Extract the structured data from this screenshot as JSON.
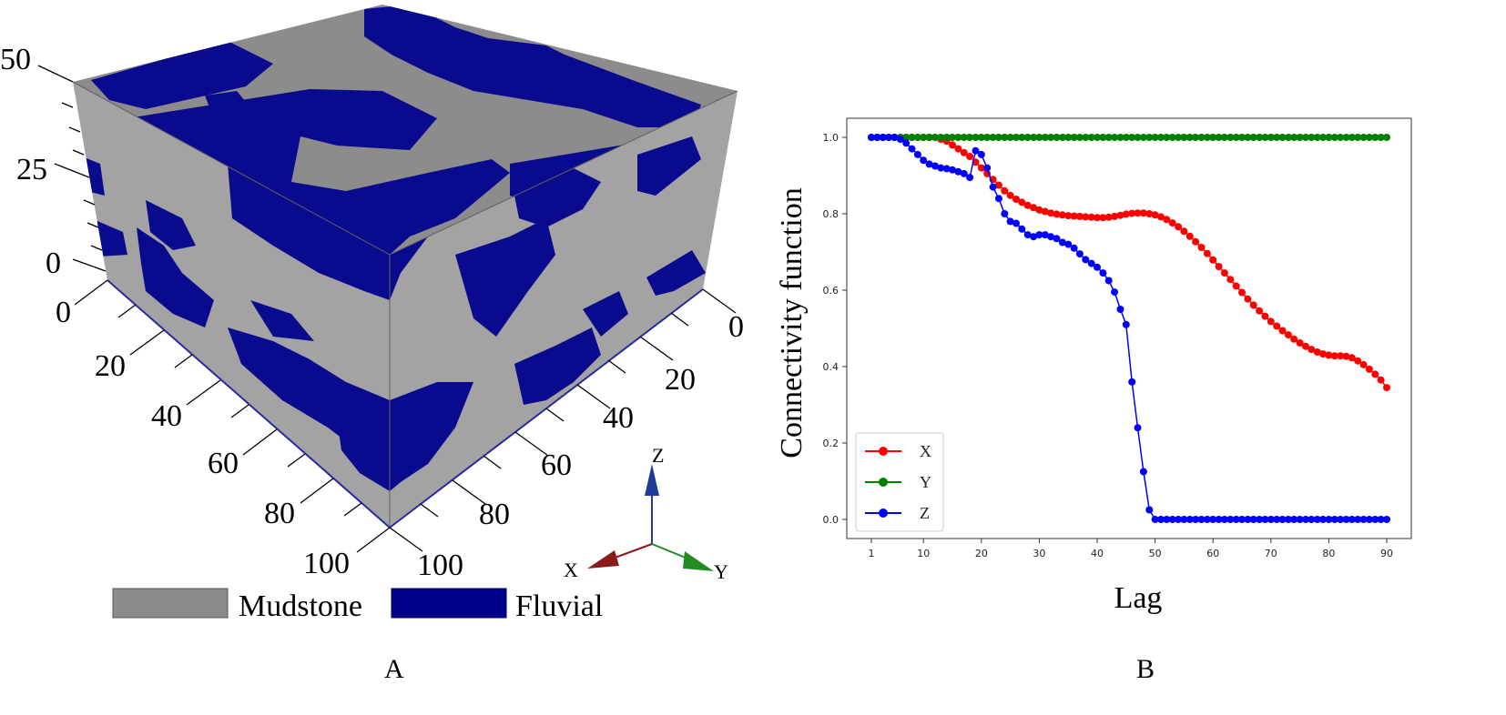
{
  "panel_a": {
    "label": "A",
    "z_ticks": [
      "50",
      "25",
      "0"
    ],
    "x_ticks": [
      "0",
      "20",
      "40",
      "60",
      "80",
      "100"
    ],
    "y_ticks": [
      "0",
      "20",
      "40",
      "60",
      "80",
      "100"
    ],
    "legend": [
      {
        "label": "Mudstone",
        "color": "#8c8c8c"
      },
      {
        "label": "Fluvial",
        "color": "#00008b"
      }
    ],
    "triad": {
      "x": "X",
      "y": "Y",
      "z": "Z",
      "x_color": "#8b1a1a",
      "y_color": "#228b22",
      "z_color": "#1f3a99"
    },
    "colors": {
      "mudstone_top": "#8c8c8c",
      "mudstone_side": "#a3a3a3",
      "fluvial": "#0a0a8f"
    }
  },
  "panel_b": {
    "label": "B"
  },
  "chart_data": {
    "type": "line",
    "xlabel": "Lag",
    "ylabel": "Connectivity function",
    "xlim": [
      1,
      90
    ],
    "ylim": [
      -0.05,
      1.05
    ],
    "x_ticks": [
      1,
      10,
      20,
      30,
      40,
      50,
      60,
      70,
      80,
      90
    ],
    "y_ticks": [
      "0.0",
      "0.2",
      "0.4",
      "0.6",
      "0.8",
      "1.0"
    ],
    "legend_position": "lower-left",
    "grid": false,
    "x": [
      1,
      2,
      3,
      4,
      5,
      6,
      7,
      8,
      9,
      10,
      11,
      12,
      13,
      14,
      15,
      16,
      17,
      18,
      19,
      20,
      21,
      22,
      23,
      24,
      25,
      26,
      27,
      28,
      29,
      30,
      31,
      32,
      33,
      34,
      35,
      36,
      37,
      38,
      39,
      40,
      41,
      42,
      43,
      44,
      45,
      46,
      47,
      48,
      49,
      50,
      51,
      52,
      53,
      54,
      55,
      56,
      57,
      58,
      59,
      60,
      61,
      62,
      63,
      64,
      65,
      66,
      67,
      68,
      69,
      70,
      71,
      72,
      73,
      74,
      75,
      76,
      77,
      78,
      79,
      80,
      81,
      82,
      83,
      84,
      85,
      86,
      87,
      88,
      89,
      90
    ],
    "series": [
      {
        "name": "X",
        "color": "#ff0000",
        "values": [
          1.0,
          1.0,
          1.0,
          1.0,
          1.0,
          1.0,
          1.0,
          1.0,
          1.0,
          1.0,
          1.0,
          1.0,
          0.995,
          0.99,
          0.98,
          0.97,
          0.96,
          0.95,
          0.935,
          0.92,
          0.905,
          0.89,
          0.875,
          0.86,
          0.848,
          0.838,
          0.83,
          0.822,
          0.816,
          0.81,
          0.806,
          0.802,
          0.799,
          0.797,
          0.795,
          0.794,
          0.793,
          0.792,
          0.791,
          0.79,
          0.79,
          0.791,
          0.793,
          0.796,
          0.799,
          0.801,
          0.802,
          0.802,
          0.8,
          0.797,
          0.792,
          0.785,
          0.776,
          0.766,
          0.754,
          0.741,
          0.727,
          0.712,
          0.696,
          0.679,
          0.662,
          0.645,
          0.628,
          0.611,
          0.594,
          0.577,
          0.561,
          0.546,
          0.532,
          0.518,
          0.506,
          0.494,
          0.483,
          0.472,
          0.462,
          0.453,
          0.445,
          0.438,
          0.433,
          0.43,
          0.428,
          0.428,
          0.427,
          0.423,
          0.415,
          0.405,
          0.393,
          0.38,
          0.365,
          0.345
        ]
      },
      {
        "name": "Y",
        "color": "#008000",
        "values": [
          1.0,
          1.0,
          1.0,
          1.0,
          1.0,
          1.0,
          1.0,
          1.0,
          1.0,
          1.0,
          1.0,
          1.0,
          1.0,
          1.0,
          1.0,
          1.0,
          1.0,
          1.0,
          1.0,
          1.0,
          1.0,
          1.0,
          1.0,
          1.0,
          1.0,
          1.0,
          1.0,
          1.0,
          1.0,
          1.0,
          1.0,
          1.0,
          1.0,
          1.0,
          1.0,
          1.0,
          1.0,
          1.0,
          1.0,
          1.0,
          1.0,
          1.0,
          1.0,
          1.0,
          1.0,
          1.0,
          1.0,
          1.0,
          1.0,
          1.0,
          1.0,
          1.0,
          1.0,
          1.0,
          1.0,
          1.0,
          1.0,
          1.0,
          1.0,
          1.0,
          1.0,
          1.0,
          1.0,
          1.0,
          1.0,
          1.0,
          1.0,
          1.0,
          1.0,
          1.0,
          1.0,
          1.0,
          1.0,
          1.0,
          1.0,
          1.0,
          1.0,
          1.0,
          1.0,
          1.0,
          1.0,
          1.0,
          1.0,
          1.0,
          1.0,
          1.0,
          1.0,
          1.0,
          1.0,
          1.0
        ]
      },
      {
        "name": "Z",
        "color": "#0000ff",
        "values": [
          1.0,
          1.0,
          1.0,
          1.0,
          1.0,
          0.995,
          0.985,
          0.97,
          0.955,
          0.94,
          0.93,
          0.925,
          0.92,
          0.918,
          0.915,
          0.91,
          0.905,
          0.895,
          0.965,
          0.955,
          0.92,
          0.87,
          0.84,
          0.8,
          0.78,
          0.775,
          0.76,
          0.745,
          0.74,
          0.745,
          0.745,
          0.74,
          0.735,
          0.725,
          0.72,
          0.71,
          0.695,
          0.68,
          0.67,
          0.66,
          0.645,
          0.625,
          0.595,
          0.55,
          0.51,
          0.36,
          0.24,
          0.125,
          0.025,
          0.0,
          0.0,
          0.0,
          0.0,
          0.0,
          0.0,
          0.0,
          0.0,
          0.0,
          0.0,
          0.0,
          0.0,
          0.0,
          0.0,
          0.0,
          0.0,
          0.0,
          0.0,
          0.0,
          0.0,
          0.0,
          0.0,
          0.0,
          0.0,
          0.0,
          0.0,
          0.0,
          0.0,
          0.0,
          0.0,
          0.0,
          0.0,
          0.0,
          0.0,
          0.0,
          0.0,
          0.0,
          0.0,
          0.0,
          0.0,
          0.0
        ]
      }
    ]
  }
}
